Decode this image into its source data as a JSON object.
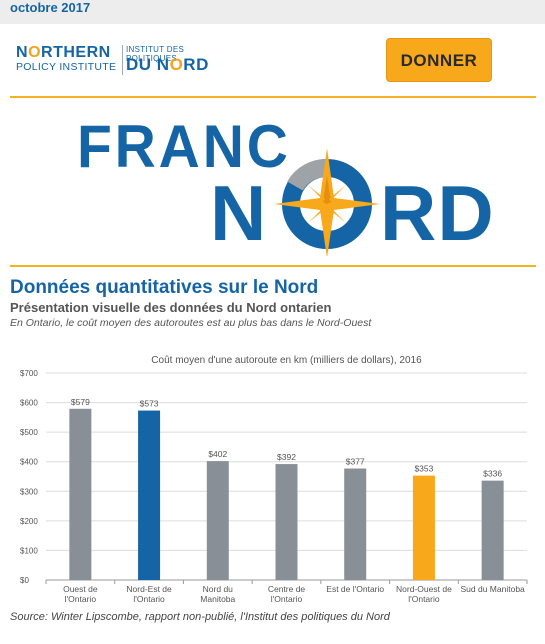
{
  "topbar": {
    "date": "octobre 2017"
  },
  "header": {
    "logo_en_line1_pre": "N",
    "logo_en_line1_o": "O",
    "logo_en_line1_post": "RTHERN",
    "logo_en_line2": "POLICY INSTITUTE",
    "logo_fr_line1": "INSTITUT DES POLITIQUES",
    "logo_fr_line2_pre": "DU N",
    "logo_fr_line2_o": "O",
    "logo_fr_line2_post": "RD",
    "donate_label": "DONNER"
  },
  "banner": {
    "line1": "FRANC",
    "line2_n": "N",
    "line2_rd": "RD"
  },
  "article": {
    "title": "Données quantitatives sur le Nord",
    "subtitle": "Présentation visuelle des données du Nord ontarien",
    "caption": "En Ontario, le coût moyen des autoroutes est au plus bas dans le Nord-Ouest",
    "source": "Source: Winter Lipscombe, rapport non-publié, l'Institut des politiques du Nord"
  },
  "colors": {
    "brand_blue": "#1565a6",
    "accent_orange": "#f7a81b",
    "bar_gray": "#898f97"
  },
  "chart_data": {
    "type": "bar",
    "title": "Coût moyen d'une autoroute en km (milliers de dollars), 2016",
    "categories": [
      [
        "Ouest de",
        "l'Ontario"
      ],
      [
        "Nord-Est de",
        "l'Ontario"
      ],
      [
        "Nord du",
        "Manitoba"
      ],
      [
        "Centre de",
        "l'Ontario"
      ],
      [
        "Est de l'Ontario"
      ],
      [
        "Nord-Ouest de",
        "l'Ontario"
      ],
      [
        "Sud du Manitoba"
      ]
    ],
    "values": [
      579,
      573,
      402,
      392,
      377,
      353,
      336
    ],
    "value_labels": [
      "$579",
      "$573",
      "$402",
      "$392",
      "$377",
      "$353",
      "$336"
    ],
    "bar_colors": [
      "#898f97",
      "#1565a6",
      "#898f97",
      "#898f97",
      "#898f97",
      "#f7a81b",
      "#898f97"
    ],
    "ylim": [
      0,
      700
    ],
    "yticks": [
      0,
      100,
      200,
      300,
      400,
      500,
      600,
      700
    ],
    "ytick_labels": [
      "$0",
      "$100",
      "$200",
      "$300",
      "$400",
      "$500",
      "$600",
      "$700"
    ],
    "grid": true
  }
}
